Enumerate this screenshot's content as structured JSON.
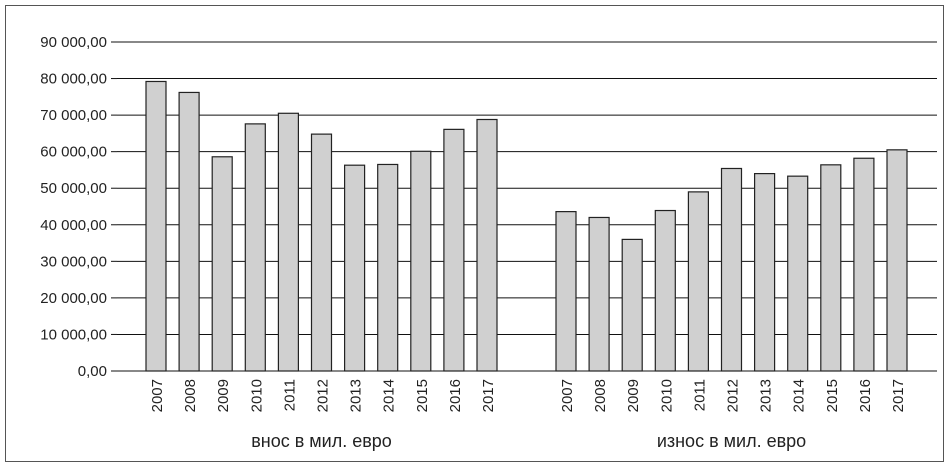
{
  "chart_data": {
    "type": "bar",
    "y_ticks": [
      "0,00",
      "10 000,00",
      "20 000,00",
      "30 000,00",
      "40 000,00",
      "50 000,00",
      "60 000,00",
      "70 000,00",
      "80 000,00",
      "90 000,00"
    ],
    "ylim": [
      0,
      90000
    ],
    "grid": true,
    "bar_color": "#d0d0d0",
    "bar_stroke": "#222222",
    "groups": [
      {
        "label": "внос в мил. евро",
        "categories": [
          "2007",
          "2008",
          "2009",
          "2010",
          "2011",
          "2012",
          "2013",
          "2014",
          "2015",
          "2016",
          "2017"
        ],
        "values": [
          79200,
          76200,
          58600,
          67600,
          70500,
          64800,
          56300,
          56500,
          60100,
          66100,
          68800
        ]
      },
      {
        "label": "износ в мил. евро",
        "categories": [
          "2007",
          "2008",
          "2009",
          "2010",
          "2011",
          "2012",
          "2013",
          "2014",
          "2015",
          "2016",
          "2017"
        ],
        "values": [
          43600,
          42000,
          36000,
          43900,
          49000,
          55400,
          54000,
          53300,
          56400,
          58200,
          60500
        ]
      }
    ]
  }
}
